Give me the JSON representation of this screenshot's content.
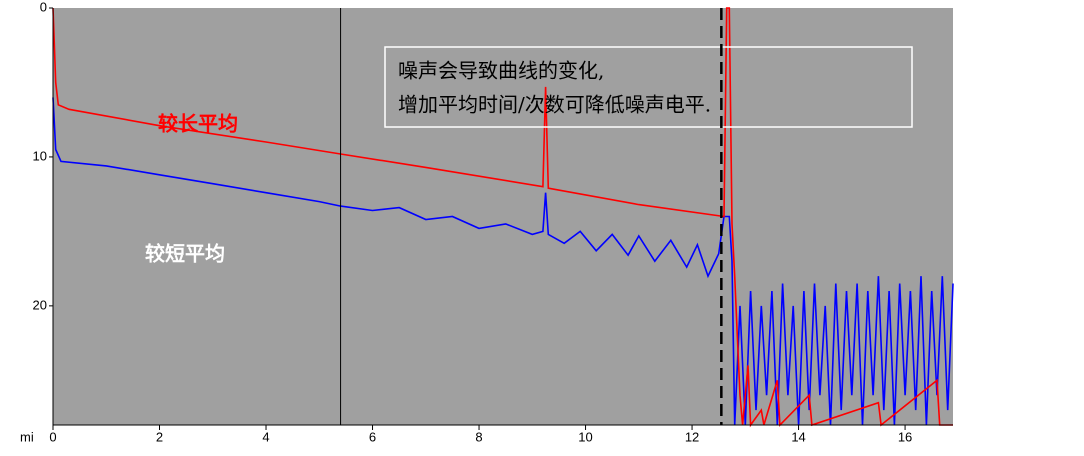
{
  "chart_data": {
    "type": "line",
    "x_label": "mi",
    "xlim": [
      0,
      16.9
    ],
    "xticks": [
      0,
      2,
      4,
      6,
      8,
      10,
      12,
      14,
      16
    ],
    "ylim": [
      0,
      28
    ],
    "yticks": [
      0,
      10,
      20
    ],
    "y_inverted": true,
    "background": "#a0a0a0",
    "annotation": [
      "噪声会导致曲线的变化,",
      "增加平均时间/次数可降低噪声电平."
    ],
    "markers": [
      {
        "x": 5.4,
        "style": "solid"
      },
      {
        "x": 12.55,
        "style": "dashed"
      }
    ],
    "series": [
      {
        "name": "较短平均",
        "color": "#0000ff",
        "x": [
          0,
          0.05,
          0.15,
          1,
          2,
          3,
          4,
          5,
          5.4,
          6,
          6.5,
          7,
          7.5,
          8,
          8.5,
          9,
          9.2,
          9.25,
          9.3,
          9.6,
          9.9,
          10.2,
          10.5,
          10.8,
          11,
          11.3,
          11.6,
          11.9,
          12.1,
          12.3,
          12.5,
          12.6,
          12.7,
          12.75,
          12.8,
          12.9,
          13,
          13.1,
          13.2,
          13.3,
          13.4,
          13.5,
          13.6,
          13.7,
          13.8,
          13.9,
          14,
          14.1,
          14.2,
          14.3,
          14.4,
          14.5,
          14.6,
          14.7,
          14.8,
          14.9,
          15,
          15.1,
          15.2,
          15.3,
          15.4,
          15.5,
          15.6,
          15.7,
          15.8,
          15.9,
          16,
          16.1,
          16.2,
          16.3,
          16.4,
          16.5,
          16.6,
          16.7,
          16.8,
          16.9
        ],
        "values": [
          6,
          9.5,
          10.3,
          10.6,
          11.2,
          11.8,
          12.4,
          13,
          13.3,
          13.6,
          13.4,
          14.2,
          14,
          14.8,
          14.5,
          15.2,
          15,
          12.4,
          15.2,
          15.8,
          15,
          16.3,
          15.2,
          16.6,
          15.3,
          17,
          15.6,
          17.4,
          15.9,
          18,
          16.5,
          14,
          14,
          17,
          28,
          20,
          28,
          19,
          27,
          20,
          26,
          19,
          28,
          18.5,
          26,
          20,
          28,
          19,
          27,
          18.5,
          26,
          20,
          28,
          18.5,
          27,
          19,
          26,
          18.5,
          28,
          19,
          26,
          18,
          27,
          19,
          28,
          18.5,
          26,
          19,
          27,
          18,
          28,
          19,
          26,
          18,
          27,
          18.5
        ]
      },
      {
        "name": "较长平均",
        "color": "#ff0000",
        "x": [
          0,
          0.05,
          0.1,
          0.3,
          2,
          4,
          5.4,
          7,
          9.2,
          9.25,
          9.3,
          11,
          12.6,
          12.65,
          12.7,
          12.75,
          12.8,
          12.85,
          12.9,
          12.95,
          13.05,
          13.1,
          13.3,
          13.35,
          13.6,
          13.65,
          14.2,
          14.25,
          15.5,
          15.55,
          16.6,
          16.65,
          16.9
        ],
        "values": [
          0,
          5,
          6.5,
          6.8,
          7.9,
          9,
          9.8,
          10.7,
          12,
          5.3,
          12.1,
          13.2,
          14,
          0,
          0,
          14.5,
          18,
          22,
          26,
          28,
          24,
          28,
          27,
          28,
          25,
          28,
          26,
          28,
          26.5,
          28,
          25,
          28,
          28
        ]
      }
    ]
  }
}
